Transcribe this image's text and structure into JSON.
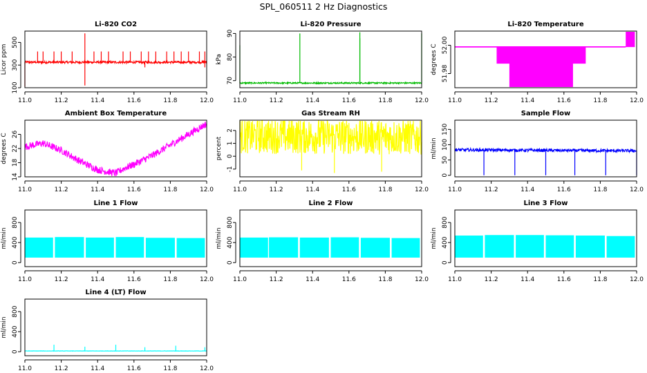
{
  "figure": {
    "title": "SPL_060511  2 Hz Diagnostics"
  },
  "chart_data": [
    {
      "id": "co2",
      "type": "line",
      "title": "Li-820 CO2",
      "ylabel": "Licor ppm",
      "color": "#ff0000",
      "xlim": [
        11.0,
        12.0
      ],
      "ylim": [
        100,
        600
      ],
      "xticks": [
        11.0,
        11.2,
        11.4,
        11.6,
        11.8,
        12.0
      ],
      "xtick_labels": [
        "11.0",
        "11.2",
        "11.4",
        "11.6",
        "11.8",
        "12.0"
      ],
      "yticks": [
        100,
        300,
        500
      ],
      "ytick_labels": [
        "100",
        "300",
        "500"
      ],
      "baseline": [
        [
          11.0,
          325
        ],
        [
          12.0,
          325
        ]
      ],
      "noise": 10,
      "spikes": [
        [
          11.0,
          110
        ],
        [
          11.33,
          580
        ],
        [
          11.33,
          120
        ],
        [
          11.07,
          420
        ],
        [
          11.1,
          420
        ],
        [
          11.16,
          420
        ],
        [
          11.2,
          420
        ],
        [
          11.26,
          420
        ],
        [
          11.38,
          420
        ],
        [
          11.42,
          420
        ],
        [
          11.46,
          420
        ],
        [
          11.54,
          420
        ],
        [
          11.58,
          420
        ],
        [
          11.64,
          420
        ],
        [
          11.68,
          420
        ],
        [
          11.72,
          420
        ],
        [
          11.78,
          420
        ],
        [
          11.82,
          420
        ],
        [
          11.86,
          420
        ],
        [
          11.9,
          420
        ],
        [
          11.96,
          420
        ],
        [
          11.99,
          420
        ],
        [
          11.66,
          280
        ],
        [
          11.99,
          280
        ]
      ]
    },
    {
      "id": "pressure",
      "type": "line",
      "title": "Li-820 Pressure",
      "ylabel": "kPa",
      "color": "#00bb00",
      "xlim": [
        11.0,
        12.0
      ],
      "ylim": [
        67,
        91
      ],
      "xticks": [
        11.0,
        11.2,
        11.4,
        11.6,
        11.8,
        12.0
      ],
      "xtick_labels": [
        "11.0",
        "11.2",
        "11.4",
        "11.6",
        "11.8",
        "12.0"
      ],
      "yticks": [
        70,
        80,
        90
      ],
      "ytick_labels": [
        "70",
        "80",
        "90"
      ],
      "baseline": [
        [
          11.0,
          69
        ],
        [
          12.0,
          69
        ]
      ],
      "noise": 0.3,
      "spikes": [
        [
          11.0,
          85
        ],
        [
          11.33,
          90
        ],
        [
          11.66,
          90.5
        ],
        [
          11.66,
          88
        ],
        [
          12.0,
          90
        ]
      ]
    },
    {
      "id": "temperature",
      "type": "band",
      "title": "Li-820 Temperature",
      "ylabel": "degrees C",
      "color": "#ff00ff",
      "xlim": [
        11.0,
        12.0
      ],
      "ylim": [
        51.97,
        52.01
      ],
      "xticks": [
        11.0,
        11.2,
        11.4,
        11.6,
        11.8,
        12.0
      ],
      "xtick_labels": [
        "11.0",
        "11.2",
        "11.4",
        "11.6",
        "11.8",
        "12.0"
      ],
      "yticks": [
        51.98,
        52.0
      ],
      "ytick_labels": [
        "51.98",
        "52.00"
      ],
      "bands": [
        [
          11.0,
          11.94,
          51.999,
          51.999
        ],
        [
          11.23,
          11.72,
          51.987,
          51.999
        ],
        [
          11.3,
          11.65,
          51.9705,
          51.999
        ],
        [
          11.94,
          11.99,
          51.999,
          52.01
        ]
      ]
    },
    {
      "id": "ambient",
      "type": "line",
      "title": "Ambient Box Temperature",
      "ylabel": "degrees C",
      "color": "#ff00ff",
      "xlim": [
        11.0,
        12.0
      ],
      "ylim": [
        14,
        30
      ],
      "xticks": [
        11.0,
        11.2,
        11.4,
        11.6,
        11.8,
        12.0
      ],
      "xtick_labels": [
        "11.0",
        "11.2",
        "11.4",
        "11.6",
        "11.8",
        "12.0"
      ],
      "yticks": [
        14,
        18,
        22,
        26
      ],
      "ytick_labels": [
        "14",
        "18",
        "22",
        "26"
      ],
      "baseline": [
        [
          11.0,
          22.5
        ],
        [
          11.1,
          23.5
        ],
        [
          11.2,
          21.5
        ],
        [
          11.3,
          18.5
        ],
        [
          11.4,
          16
        ],
        [
          11.5,
          15
        ],
        [
          11.55,
          16.5
        ],
        [
          11.6,
          17.5
        ],
        [
          11.7,
          20
        ],
        [
          11.8,
          23
        ],
        [
          11.9,
          26
        ],
        [
          12.0,
          29
        ]
      ],
      "noise": 1.0,
      "spikes": []
    },
    {
      "id": "rh",
      "type": "line",
      "title": "Gas Stream RH",
      "ylabel": "percent",
      "color": "#ffff00",
      "xlim": [
        11.0,
        12.0
      ],
      "ylim": [
        -1.6,
        2.8
      ],
      "xticks": [
        11.0,
        11.2,
        11.4,
        11.6,
        11.8,
        12.0
      ],
      "xtick_labels": [
        "11.0",
        "11.2",
        "11.4",
        "11.6",
        "11.8",
        "12.0"
      ],
      "yticks": [
        -1,
        0,
        1,
        2
      ],
      "ytick_labels": [
        "-1",
        "0",
        "1",
        "2"
      ],
      "baseline": [
        [
          11.0,
          1.6
        ],
        [
          12.0,
          1.5
        ]
      ],
      "noise": 1.4,
      "spikes": [
        [
          11.52,
          -1.3
        ],
        [
          11.78,
          -1.2
        ],
        [
          11.34,
          -1.1
        ]
      ]
    },
    {
      "id": "sample",
      "type": "line",
      "title": "Sample Flow",
      "ylabel": "ml/min",
      "color": "#0000ff",
      "xlim": [
        11.0,
        12.0
      ],
      "ylim": [
        -5,
        180
      ],
      "xticks": [
        11.0,
        11.2,
        11.4,
        11.6,
        11.8,
        12.0
      ],
      "xtick_labels": [
        "11.0",
        "11.2",
        "11.4",
        "11.6",
        "11.8",
        "12.0"
      ],
      "yticks": [
        0,
        50,
        100,
        150
      ],
      "ytick_labels": [
        "0",
        "50",
        "100",
        "150"
      ],
      "baseline": [
        [
          11.0,
          83
        ],
        [
          12.0,
          80
        ]
      ],
      "noise": 5,
      "spikes": [
        [
          11.16,
          0
        ],
        [
          11.33,
          0
        ],
        [
          11.5,
          0
        ],
        [
          11.66,
          0
        ],
        [
          11.83,
          0
        ],
        [
          12.0,
          0
        ]
      ]
    },
    {
      "id": "line1",
      "type": "band",
      "title": "Line 1 Flow",
      "ylabel": "ml/min",
      "color": "#00ffff",
      "xlim": [
        11.0,
        12.0
      ],
      "ylim": [
        -80,
        1050
      ],
      "xticks": [
        11.0,
        11.2,
        11.4,
        11.6,
        11.8,
        12.0
      ],
      "xtick_labels": [
        "11.0",
        "11.2",
        "11.4",
        "11.6",
        "11.8",
        "12.0"
      ],
      "yticks": [
        0,
        400,
        800
      ],
      "ytick_labels": [
        "0",
        "400",
        "800"
      ],
      "bands": [
        [
          11.0,
          11.155,
          100,
          500
        ],
        [
          11.165,
          11.325,
          100,
          510
        ],
        [
          11.335,
          11.49,
          100,
          500
        ],
        [
          11.5,
          11.655,
          100,
          510
        ],
        [
          11.665,
          11.825,
          100,
          495
        ],
        [
          11.835,
          11.99,
          100,
          490
        ]
      ]
    },
    {
      "id": "line2",
      "type": "band",
      "title": "Line 2 Flow",
      "ylabel": "ml/min",
      "color": "#00ffff",
      "xlim": [
        11.0,
        12.0
      ],
      "ylim": [
        -80,
        1050
      ],
      "xticks": [
        11.0,
        11.2,
        11.4,
        11.6,
        11.8,
        12.0
      ],
      "xtick_labels": [
        "11.0",
        "11.2",
        "11.4",
        "11.6",
        "11.8",
        "12.0"
      ],
      "yticks": [
        0,
        400,
        800
      ],
      "ytick_labels": [
        "0",
        "400",
        "800"
      ],
      "bands": [
        [
          11.0,
          11.155,
          100,
          500
        ],
        [
          11.16,
          11.32,
          100,
          505
        ],
        [
          11.33,
          11.49,
          100,
          500
        ],
        [
          11.5,
          11.655,
          100,
          505
        ],
        [
          11.665,
          11.825,
          100,
          495
        ],
        [
          11.835,
          11.99,
          100,
          490
        ]
      ]
    },
    {
      "id": "line3",
      "type": "band",
      "title": "Line 3 Flow",
      "ylabel": "ml/min",
      "color": "#00ffff",
      "xlim": [
        11.0,
        12.0
      ],
      "ylim": [
        -80,
        1050
      ],
      "xticks": [
        11.0,
        11.2,
        11.4,
        11.6,
        11.8,
        12.0
      ],
      "xtick_labels": [
        "11.0",
        "11.2",
        "11.4",
        "11.6",
        "11.8",
        "12.0"
      ],
      "yticks": [
        0,
        400,
        800
      ],
      "ytick_labels": [
        "0",
        "400",
        "800"
      ],
      "bands": [
        [
          11.0,
          11.155,
          100,
          540
        ],
        [
          11.165,
          11.325,
          100,
          550
        ],
        [
          11.335,
          11.49,
          100,
          550
        ],
        [
          11.5,
          11.655,
          100,
          545
        ],
        [
          11.665,
          11.825,
          100,
          540
        ],
        [
          11.835,
          11.99,
          100,
          530
        ]
      ]
    },
    {
      "id": "line4",
      "type": "line",
      "title": "Line 4 (LT) Flow",
      "ylabel": "ml/min",
      "color": "#00ffff",
      "xlim": [
        11.0,
        12.0
      ],
      "ylim": [
        -80,
        1050
      ],
      "xticks": [
        11.0,
        11.2,
        11.4,
        11.6,
        11.8,
        12.0
      ],
      "xtick_labels": [
        "11.0",
        "11.2",
        "11.4",
        "11.6",
        "11.8",
        "12.0"
      ],
      "yticks": [
        0,
        400,
        800
      ],
      "ytick_labels": [
        "0",
        "400",
        "800"
      ],
      "baseline": [
        [
          11.0,
          15
        ],
        [
          12.0,
          15
        ]
      ],
      "noise": 3,
      "spikes": [
        [
          11.16,
          140
        ],
        [
          11.33,
          100
        ],
        [
          11.5,
          140
        ],
        [
          11.66,
          90
        ],
        [
          11.83,
          120
        ],
        [
          11.99,
          90
        ]
      ]
    }
  ]
}
